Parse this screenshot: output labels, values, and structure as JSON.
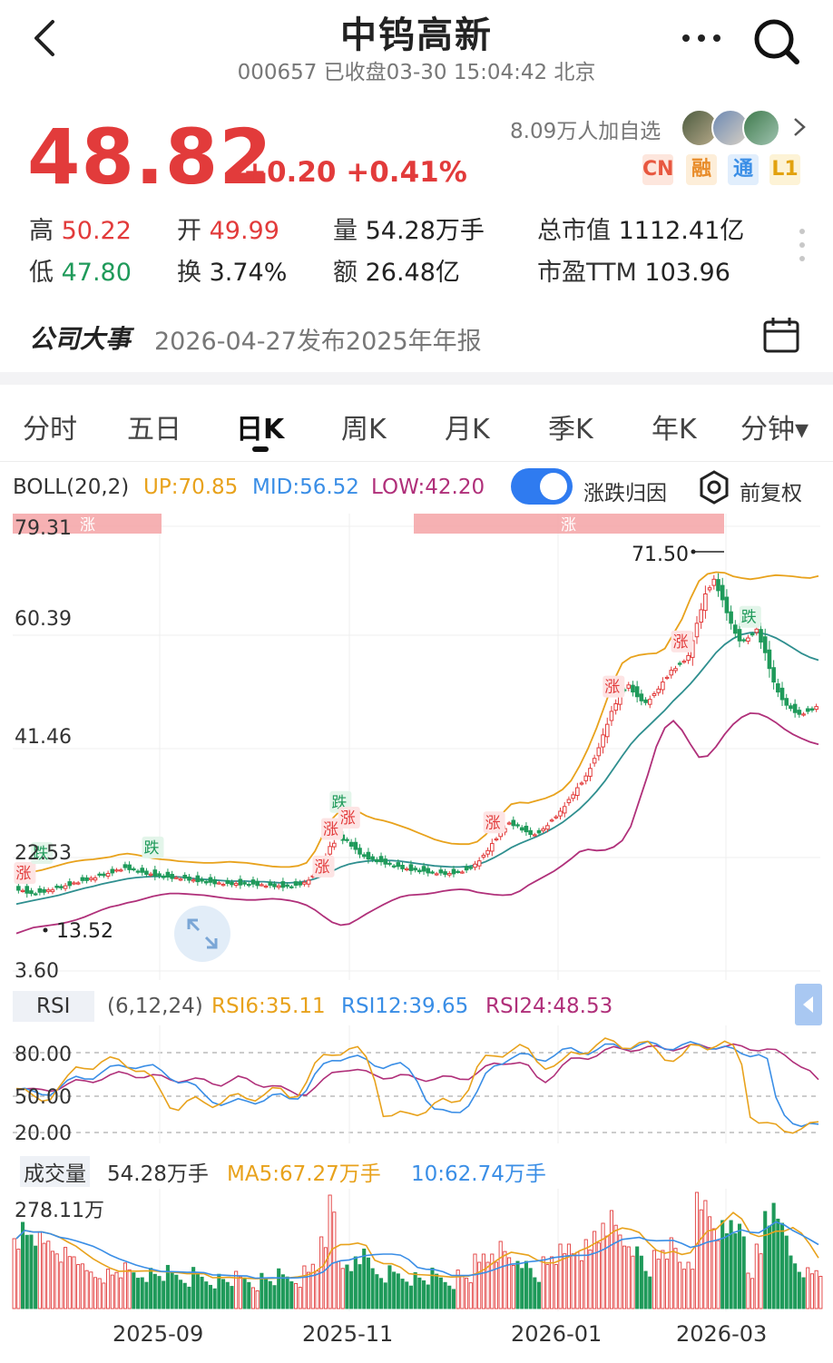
{
  "header": {
    "title": "中钨高新",
    "subtitle": "000657 已收盘03-30 15:04:42 北京"
  },
  "quote": {
    "price": "48.82",
    "change": "+0.20 +0.41%",
    "watchers": "8.09万人加自选",
    "badges": [
      "CN",
      "融",
      "通",
      "L1"
    ],
    "stats": {
      "high_label": "高",
      "high": "50.22",
      "open_label": "开",
      "open": "49.99",
      "vol_label": "量",
      "vol": "54.28万手",
      "mktcap_label": "总市值",
      "mktcap": "1112.41亿",
      "low_label": "低",
      "low": "47.80",
      "turnover_label": "换",
      "turnover": "3.74%",
      "amount_label": "额",
      "amount": "26.48亿",
      "pe_label": "市盈TTM",
      "pe": "103.96"
    }
  },
  "event": {
    "title": "公司大事",
    "text": "2026-04-27发布2025年年报"
  },
  "tabs": [
    "分时",
    "五日",
    "日K",
    "周K",
    "月K",
    "季K",
    "年K",
    "分钟▾"
  ],
  "active_tab": "日K",
  "boll": {
    "label": "BOLL(20,2)",
    "up": "UP:70.85",
    "mid": "MID:56.52",
    "low": "LOW:42.20",
    "toggle_label": "涨跌归因",
    "adjust_label": "前复权"
  },
  "rsi": {
    "label": "RSI",
    "params": "(6,12,24)",
    "rsi6": "RSI6:35.11",
    "rsi12": "RSI12:39.65",
    "rsi24": "RSI24:48.53",
    "levels": [
      "80.00",
      "50.00",
      "20.00"
    ]
  },
  "volume": {
    "label": "成交量",
    "value": "54.28万手",
    "ma5": "MA5:67.27万手",
    "ma10": "10:62.74万手",
    "max": "278.11万"
  },
  "chart_data": {
    "type": "candlestick",
    "y_ticks": [
      "79.31",
      "60.39",
      "41.46",
      "22.53",
      "3.60"
    ],
    "ylim": [
      3.6,
      79.31
    ],
    "x_ticks": [
      "2025-09",
      "2025-11",
      "2026-01",
      "2026-03"
    ],
    "annotations": {
      "max_label": "71.50",
      "min_label": "13.52",
      "up_marker": "涨",
      "down_marker": "跌"
    },
    "close_series": [
      18,
      17.5,
      17,
      17.2,
      17.6,
      18,
      18.3,
      18.8,
      19.2,
      19.6,
      20.1,
      20.4,
      21,
      21.4,
      21.1,
      20.6,
      20.3,
      20,
      19.8,
      19.7,
      19.6,
      19.3,
      19.1,
      18.9,
      18.8,
      18.7,
      18.7,
      18.6,
      18.6,
      18.5,
      18.4,
      18.3,
      18.2,
      18.4,
      18.9,
      20,
      22,
      25,
      26.5,
      26,
      24.5,
      23.3,
      22.8,
      22.4,
      22,
      21.6,
      21.2,
      21,
      20.8,
      20.6,
      20.5,
      20.4,
      20.7,
      21,
      22,
      23.5,
      25.5,
      27.5,
      29,
      28.5,
      27.5,
      27,
      28,
      29.5,
      31,
      33,
      35,
      37,
      40,
      44,
      48,
      51,
      52.5,
      50.5,
      49.5,
      51,
      53,
      55,
      56,
      57.5,
      63,
      68,
      70.5,
      67,
      63,
      60,
      60.5,
      62,
      58,
      53,
      50,
      48.5,
      47.5,
      48,
      48.82
    ],
    "boll_upper": [
      22,
      21,
      20.5,
      20.8,
      21.2,
      21.6,
      22,
      22.3,
      22.5,
      22.6,
      22.8,
      23,
      23.4,
      23.6,
      23.4,
      23.1,
      22.8,
      22.6,
      22.5,
      22.3,
      22.2,
      22.1,
      22,
      22,
      22.1,
      22.2,
      22.1,
      22,
      21.8,
      21.6,
      21.4,
      21.3,
      21.3,
      21.5,
      22,
      24,
      27,
      29.5,
      31,
      31.2,
      30.8,
      30,
      29.5,
      29.2,
      28.8,
      28.3,
      27.8,
      27.2,
      26.6,
      26,
      25.6,
      25.3,
      25.2,
      25.2,
      25.6,
      26.8,
      28.5,
      30.5,
      32,
      32.3,
      32.2,
      32.6,
      33,
      33.6,
      34.5,
      36,
      38.5,
      41.5,
      45,
      49,
      53,
      56,
      57,
      57.4,
      57.6,
      57.7,
      58.5,
      61,
      63.5,
      67,
      70,
      71.2,
      71.5,
      71.4,
      70.8,
      70.5,
      70.3,
      70.5,
      70.8,
      71,
      70.9,
      70.8,
      70.6,
      70.5,
      70.85
    ],
    "boll_mid": [
      15,
      15.3,
      15.6,
      15.9,
      16.2,
      16.5,
      16.9,
      17.3,
      17.7,
      18,
      18.4,
      18.7,
      19,
      19.3,
      19.5,
      19.6,
      19.7,
      19.7,
      19.7,
      19.6,
      19.5,
      19.3,
      19.2,
      19.1,
      19,
      18.9,
      18.9,
      18.9,
      18.8,
      18.8,
      18.7,
      18.6,
      18.6,
      18.7,
      18.9,
      19.3,
      19.9,
      20.6,
      21.3,
      21.8,
      22.1,
      22.3,
      22.4,
      22.4,
      22.4,
      22.3,
      22.1,
      21.9,
      21.7,
      21.5,
      21.4,
      21.3,
      21.3,
      21.4,
      21.7,
      22.2,
      22.9,
      23.7,
      24.6,
      25.3,
      25.9,
      26.5,
      27.2,
      28,
      28.9,
      30,
      31.2,
      32.6,
      34.2,
      36,
      38.1,
      40.2,
      42.2,
      43.8,
      45.2,
      46.6,
      48,
      49.6,
      51,
      52.5,
      54.2,
      56,
      57.8,
      59.2,
      60.2,
      60.9,
      61.2,
      61.2,
      60.9,
      60.3,
      59.5,
      58.6,
      57.7,
      57,
      56.52
    ],
    "boll_lower": [
      10,
      10.5,
      11,
      11.2,
      11.4,
      11.6,
      11.9,
      12.3,
      12.8,
      13.4,
      14,
      14.5,
      14.8,
      15.2,
      15.5,
      15.9,
      16.3,
      16.6,
      16.8,
      16.8,
      16.7,
      16.6,
      16.5,
      16.3,
      16.1,
      15.9,
      15.8,
      15.7,
      15.7,
      15.8,
      15.9,
      15.8,
      15.6,
      15.3,
      14.8,
      14,
      12.9,
      11.9,
      11.4,
      11.6,
      12.4,
      13.3,
      14.1,
      14.9,
      15.6,
      16.2,
      16.5,
      16.6,
      16.7,
      16.9,
      17.2,
      17.4,
      17.5,
      17.4,
      17,
      16.8,
      16.6,
      16.5,
      16.6,
      17.2,
      18.2,
      19,
      19.8,
      20.6,
      21.6,
      22.7,
      23.9,
      24.3,
      24.1,
      24.2,
      24.7,
      25.8,
      28.2,
      32.6,
      37,
      41.8,
      45,
      46.2,
      44.6,
      42.2,
      40,
      40.2,
      41.8,
      43.9,
      45.6,
      46.8,
      47.5,
      47.4,
      46.8,
      45.9,
      44.8,
      43.9,
      43.2,
      42.6,
      42.2
    ]
  }
}
